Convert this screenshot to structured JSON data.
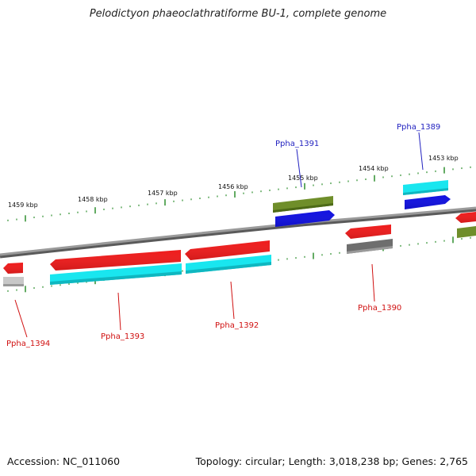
{
  "title": "Pelodictyon phaeoclathratiforme BU-1, complete genome",
  "footer": {
    "accession": "Accession: NC_011060",
    "summary": "Topology: circular; Length: 3,018,238 bp; Genes: 2,765"
  },
  "colors": {
    "backbone": "#8a8a8a",
    "ticks": "#2f8f2f",
    "forward_label": "#1f1fbf",
    "reverse_label": "#d01010",
    "red": "#ee1c1c",
    "cyan": "#19e6ef",
    "olive": "#6f8e2a",
    "blue": "#1111e0",
    "gray": "#707070",
    "lightgray": "#b8b8b8"
  },
  "scale_labels": [
    "1459 kbp",
    "1458 kbp",
    "1457 kbp",
    "1456 kbp",
    "1455 kbp",
    "1454 kbp",
    "1453 kbp"
  ],
  "genes": [
    {
      "locus": "Ppha_1394",
      "strand": "-"
    },
    {
      "locus": "Ppha_1393",
      "strand": "-"
    },
    {
      "locus": "Ppha_1392",
      "strand": "-"
    },
    {
      "locus": "Ppha_1391",
      "strand": "+"
    },
    {
      "locus": "Ppha_1390",
      "strand": "-"
    },
    {
      "locus": "Ppha_1389",
      "strand": "+"
    }
  ]
}
